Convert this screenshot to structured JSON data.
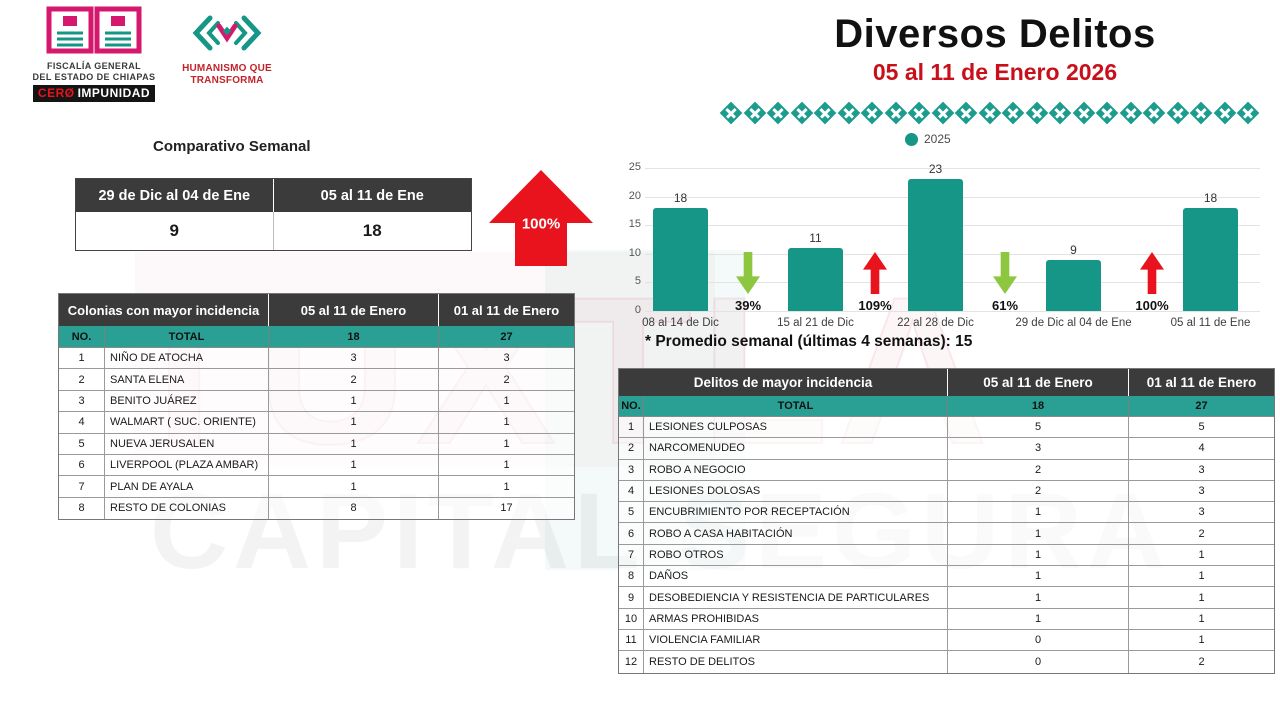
{
  "logos": {
    "fiscalia": {
      "line1": "FISCALÍA GENERAL",
      "line2": "DEL ESTADO DE CHIAPAS",
      "badge_red": "CERØ",
      "badge_white": "IMPUNIDAD"
    },
    "humanismo": {
      "line1": "HUMANISMO QUE",
      "line2": "TRANSFORMA"
    }
  },
  "header": {
    "title": "Diversos Delitos",
    "subtitle": "05 al 11 de Enero 2026"
  },
  "watermark": {
    "line1": "TUXTLA",
    "line2": "CAPITAL SEGURA"
  },
  "comparativo": {
    "heading": "Comparativo Semanal",
    "columns": [
      "29 de Dic al 04 de Ene",
      "05 al 11 de Ene"
    ],
    "values": [
      "9",
      "18"
    ],
    "change_direction": "up",
    "change_label": "100%"
  },
  "colonias_table": {
    "title": "Colonias  con mayor incidencia",
    "no_label": "NO.",
    "total_label": "TOTAL",
    "period_columns": [
      "05 al 11 de Enero",
      "01 al 11 de Enero"
    ],
    "totals": [
      "18",
      "27"
    ],
    "rows": [
      [
        "1",
        "NIÑO DE ATOCHA",
        "3",
        "3"
      ],
      [
        "2",
        "SANTA ELENA",
        "2",
        "2"
      ],
      [
        "3",
        "BENITO JUÁREZ",
        "1",
        "1"
      ],
      [
        "4",
        "WALMART ( SUC. ORIENTE)",
        "1",
        "1"
      ],
      [
        "5",
        "NUEVA JERUSALEN",
        "1",
        "1"
      ],
      [
        "6",
        "LIVERPOOL (PLAZA AMBAR)",
        "1",
        "1"
      ],
      [
        "7",
        "PLAN DE AYALA",
        "1",
        "1"
      ],
      [
        "8",
        "RESTO DE COLONIAS",
        "8",
        "17"
      ]
    ]
  },
  "chart_data": {
    "type": "bar",
    "legend": [
      "2025"
    ],
    "legend_position": "top",
    "categories": [
      "08 al 14 de Dic",
      "15 al 21 de Dic",
      "22 al 28 de Dic",
      "29 de Dic al 04 de Ene",
      "05 al 11 de Ene"
    ],
    "values": [
      18,
      11,
      23,
      9,
      18
    ],
    "changes": [
      {
        "direction": "down",
        "label": "39%"
      },
      {
        "direction": "up",
        "label": "109%"
      },
      {
        "direction": "down",
        "label": "61%"
      },
      {
        "direction": "up",
        "label": "100%"
      }
    ],
    "ylim": [
      0,
      25
    ],
    "yticks": [
      0,
      5,
      10,
      15,
      20,
      25
    ],
    "grid": true,
    "bar_color": "#169686",
    "note": "* Promedio semanal (últimas 4 semanas): 15"
  },
  "delitos_table": {
    "title": "Delitos de mayor incidencia",
    "no_label": "NO.",
    "total_label": "TOTAL",
    "period_columns": [
      "05 al 11 de Enero",
      "01 al 11 de Enero"
    ],
    "totals": [
      "18",
      "27"
    ],
    "rows": [
      [
        "1",
        "LESIONES CULPOSAS",
        "5",
        "5"
      ],
      [
        "2",
        "NARCOMENUDEO",
        "3",
        "4"
      ],
      [
        "3",
        "ROBO A NEGOCIO",
        "2",
        "3"
      ],
      [
        "4",
        "LESIONES DOLOSAS",
        "2",
        "3"
      ],
      [
        "5",
        "ENCUBRIMIENTO POR RECEPTACIÓN",
        "1",
        "3"
      ],
      [
        "6",
        "ROBO A CASA HABITACIÓN",
        "1",
        "2"
      ],
      [
        "7",
        "ROBO OTROS",
        "1",
        "1"
      ],
      [
        "8",
        "DAÑOS",
        "1",
        "1"
      ],
      [
        "9",
        "DESOBEDIENCIA Y RESISTENCIA DE PARTICULARES",
        "1",
        "1"
      ],
      [
        "10",
        "ARMAS PROHIBIDAS",
        "1",
        "1"
      ],
      [
        "11",
        "VIOLENCIA FAMILIAR",
        "0",
        "1"
      ],
      [
        "12",
        "RESTO DE DELITOS",
        "0",
        "2"
      ]
    ]
  },
  "colors": {
    "teal": "#169686",
    "teal_row": "#2aa094",
    "dark_header": "#3b3b3b",
    "red": "#e8131d",
    "green": "#8dc63f",
    "pink": "#d6176e",
    "subtitle_red": "#c9101a"
  }
}
